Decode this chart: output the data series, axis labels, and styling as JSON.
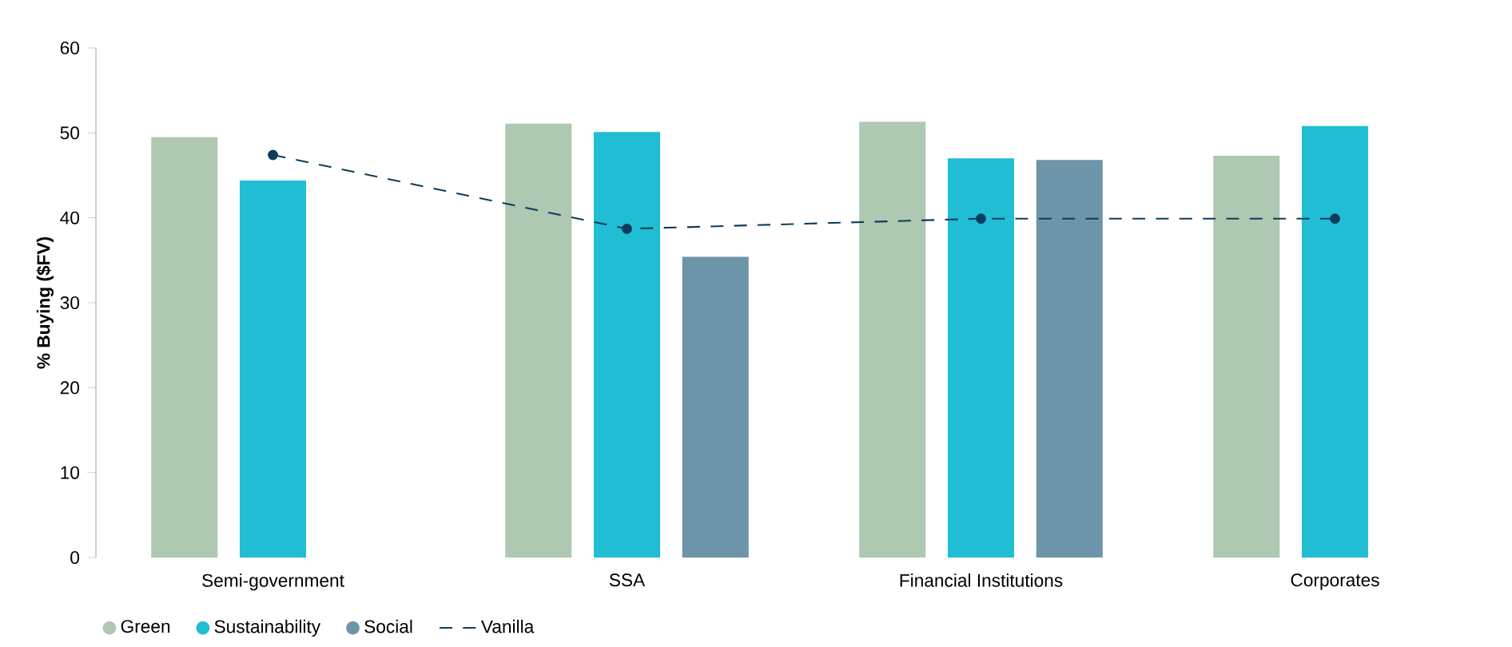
{
  "chart_data": {
    "type": "bar",
    "ylabel": "% Buying ($FV)",
    "categories": [
      "Semi-government",
      "SSA",
      "Financial Institutions",
      "Corporates"
    ],
    "series": [
      {
        "name": "Green",
        "color": "#aec8b1",
        "values": [
          49.5,
          51.1,
          51.3,
          47.3
        ]
      },
      {
        "name": "Sustainability",
        "color": "#20bdd4",
        "values": [
          44.4,
          50.1,
          47.0,
          50.8
        ]
      },
      {
        "name": "Social",
        "color": "#6e94a9",
        "values": [
          null,
          35.4,
          46.8,
          null
        ]
      },
      {
        "name": "Vanilla",
        "type": "line",
        "color": "#0d3d5c",
        "marker": "circle",
        "line_style": "dashed",
        "values": [
          47.4,
          38.7,
          39.9,
          39.9
        ]
      }
    ],
    "ylim": [
      0,
      60
    ],
    "yticks": [
      0,
      10,
      20,
      30,
      40,
      50,
      60
    ],
    "legend": "bottom left"
  }
}
